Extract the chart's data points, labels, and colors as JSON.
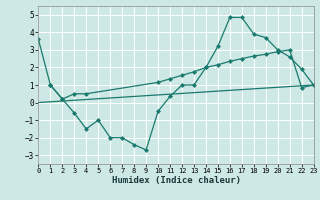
{
  "xlabel": "Humidex (Indice chaleur)",
  "background_color": "#cde8e5",
  "grid_color": "#ffffff",
  "line_color": "#1a7a6e",
  "xlim": [
    0,
    23
  ],
  "ylim": [
    -3.5,
    5.5
  ],
  "yticks": [
    -3,
    -2,
    -1,
    0,
    1,
    2,
    3,
    4,
    5
  ],
  "xticks": [
    0,
    1,
    2,
    3,
    4,
    5,
    6,
    7,
    8,
    9,
    10,
    11,
    12,
    13,
    14,
    15,
    16,
    17,
    18,
    19,
    20,
    21,
    22,
    23
  ],
  "line1_x": [
    0,
    1,
    2,
    3,
    4,
    5,
    6,
    7,
    8,
    9,
    10,
    11,
    12,
    13,
    14,
    15,
    16,
    17,
    18,
    19,
    20,
    21,
    22,
    23
  ],
  "line1_y": [
    3.6,
    1.0,
    0.2,
    -0.6,
    -1.5,
    -1.0,
    -2.0,
    -2.0,
    -2.4,
    -2.7,
    -0.5,
    0.35,
    1.0,
    1.0,
    2.0,
    3.2,
    4.85,
    4.85,
    3.9,
    3.7,
    3.0,
    2.6,
    1.9,
    1.0
  ],
  "line2_x": [
    1,
    2,
    3,
    4,
    10,
    11,
    12,
    13,
    14,
    15,
    16,
    17,
    18,
    19,
    20,
    21,
    22,
    23
  ],
  "line2_y": [
    1.0,
    0.2,
    0.5,
    0.5,
    1.15,
    1.35,
    1.55,
    1.75,
    2.0,
    2.15,
    2.35,
    2.5,
    2.65,
    2.75,
    2.9,
    3.0,
    0.85,
    1.0
  ],
  "line3_x": [
    0,
    23
  ],
  "line3_y": [
    0.0,
    1.0
  ]
}
